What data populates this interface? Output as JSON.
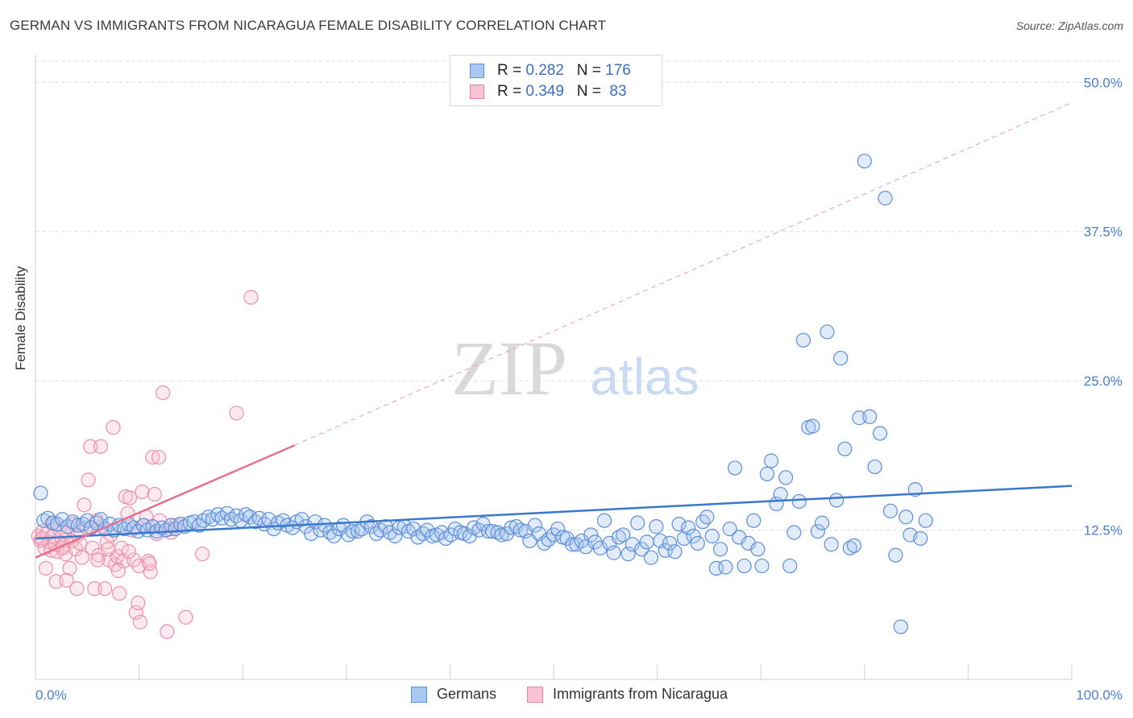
{
  "title": "GERMAN VS IMMIGRANTS FROM NICARAGUA FEMALE DISABILITY CORRELATION CHART",
  "source": "Source: ZipAtlas.com",
  "watermark": {
    "zip": "ZIP",
    "atlas": "atlas"
  },
  "legend": {
    "rows": [
      {
        "r_label": "R = ",
        "r_value": "0.282",
        "n_label": "N = ",
        "n_value": "176",
        "color": "#a9c8f0",
        "border": "#5b8fd9"
      },
      {
        "r_label": "R = ",
        "r_value": "0.349",
        "n_label": "N = ",
        "n_value": " 83",
        "color": "#f9c3d3",
        "border": "#e9849f"
      }
    ]
  },
  "bottom_legend": [
    {
      "label": "Germans",
      "color": "#a9c8f0",
      "border": "#5b8fd9"
    },
    {
      "label": "Immigrants from Nicaragua",
      "color": "#f9c3d3",
      "border": "#e9849f"
    }
  ],
  "colors": {
    "blue": "#3a78cc",
    "blue_fill": "rgba(168,199,240,0.35)",
    "blue_stroke": "#5b8fd9",
    "pink": "#e5708f",
    "pink_fill": "rgba(249,195,211,0.35)",
    "pink_stroke": "#ec8fa8",
    "axis_text": "#4a7fd0",
    "grid": "#dcdcdc"
  },
  "chart_data": {
    "type": "scatter",
    "xlabel": "",
    "ylabel": "Female Disability",
    "xlim": [
      0,
      100
    ],
    "ylim": [
      0,
      51.5
    ],
    "x_tick_labels": [
      "0.0%",
      "100.0%"
    ],
    "y_ticks": [
      12.5,
      25.0,
      37.5,
      50.0
    ],
    "y_tick_labels": [
      "12.5%",
      "25.0%",
      "37.5%",
      "50.0%"
    ],
    "grid": true,
    "legend_position": "top-center",
    "series": [
      {
        "name": "Germans",
        "R": 0.282,
        "N": 176,
        "trend": {
          "x": [
            0,
            100
          ],
          "y": [
            11.8,
            16.2
          ],
          "style": "solid"
        },
        "points": [
          [
            0.5,
            15.6
          ],
          [
            0.8,
            13.3
          ],
          [
            1.2,
            13.5
          ],
          [
            1.7,
            13.1
          ],
          [
            2.1,
            13.0
          ],
          [
            2.6,
            13.4
          ],
          [
            3.1,
            12.8
          ],
          [
            3.6,
            13.2
          ],
          [
            4.1,
            12.9
          ],
          [
            4.6,
            13.0
          ],
          [
            5.0,
            13.3
          ],
          [
            5.4,
            12.7
          ],
          [
            5.9,
            13.1
          ],
          [
            6.3,
            13.4
          ],
          [
            6.7,
            12.6
          ],
          [
            7.2,
            13.0
          ],
          [
            7.6,
            12.5
          ],
          [
            8.1,
            12.9
          ],
          [
            8.6,
            12.6
          ],
          [
            9.0,
            13.0
          ],
          [
            9.5,
            12.7
          ],
          [
            9.9,
            12.4
          ],
          [
            10.4,
            12.9
          ],
          [
            10.8,
            12.5
          ],
          [
            11.3,
            12.8
          ],
          [
            11.7,
            12.4
          ],
          [
            12.2,
            12.7
          ],
          [
            12.6,
            12.5
          ],
          [
            13.1,
            12.9
          ],
          [
            13.5,
            12.6
          ],
          [
            14.0,
            13.0
          ],
          [
            14.4,
            12.8
          ],
          [
            14.9,
            13.1
          ],
          [
            15.3,
            13.2
          ],
          [
            15.8,
            12.9
          ],
          [
            16.2,
            13.3
          ],
          [
            16.7,
            13.6
          ],
          [
            17.1,
            13.4
          ],
          [
            17.6,
            13.8
          ],
          [
            18.0,
            13.5
          ],
          [
            18.5,
            13.9
          ],
          [
            18.9,
            13.4
          ],
          [
            19.4,
            13.7
          ],
          [
            19.8,
            13.3
          ],
          [
            20.3,
            13.8
          ],
          [
            20.7,
            13.6
          ],
          [
            21.2,
            13.2
          ],
          [
            21.6,
            13.5
          ],
          [
            22.1,
            13.0
          ],
          [
            22.5,
            13.4
          ],
          [
            23.0,
            12.6
          ],
          [
            23.4,
            13.1
          ],
          [
            23.9,
            13.3
          ],
          [
            24.3,
            12.9
          ],
          [
            24.8,
            12.7
          ],
          [
            25.2,
            13.2
          ],
          [
            25.7,
            13.4
          ],
          [
            26.1,
            12.8
          ],
          [
            26.6,
            12.2
          ],
          [
            27.0,
            13.2
          ],
          [
            27.5,
            12.5
          ],
          [
            27.9,
            12.9
          ],
          [
            28.4,
            12.3
          ],
          [
            28.8,
            12.0
          ],
          [
            29.3,
            12.6
          ],
          [
            29.7,
            12.9
          ],
          [
            30.2,
            12.1
          ],
          [
            30.6,
            12.4
          ],
          [
            31.1,
            12.4
          ],
          [
            31.5,
            12.6
          ],
          [
            32.0,
            13.2
          ],
          [
            32.4,
            12.8
          ],
          [
            32.9,
            12.2
          ],
          [
            33.3,
            12.5
          ],
          [
            33.8,
            12.8
          ],
          [
            34.2,
            12.3
          ],
          [
            34.7,
            12.0
          ],
          [
            35.1,
            12.7
          ],
          [
            35.6,
            12.8
          ],
          [
            36.0,
            12.4
          ],
          [
            36.5,
            12.6
          ],
          [
            36.9,
            11.9
          ],
          [
            37.4,
            12.2
          ],
          [
            37.8,
            12.5
          ],
          [
            38.3,
            12.0
          ],
          [
            38.7,
            12.1
          ],
          [
            39.2,
            12.3
          ],
          [
            39.6,
            11.8
          ],
          [
            40.1,
            12.1
          ],
          [
            40.5,
            12.6
          ],
          [
            41.0,
            12.3
          ],
          [
            41.4,
            12.2
          ],
          [
            41.9,
            12.0
          ],
          [
            42.3,
            12.7
          ],
          [
            42.8,
            12.5
          ],
          [
            43.2,
            13.0
          ],
          [
            43.7,
            12.4
          ],
          [
            44.1,
            12.4
          ],
          [
            44.6,
            12.3
          ],
          [
            45.0,
            12.1
          ],
          [
            45.5,
            12.2
          ],
          [
            45.9,
            12.7
          ],
          [
            46.4,
            12.8
          ],
          [
            46.8,
            12.5
          ],
          [
            47.3,
            12.4
          ],
          [
            47.7,
            11.6
          ],
          [
            48.2,
            12.9
          ],
          [
            48.6,
            12.2
          ],
          [
            49.1,
            11.4
          ],
          [
            49.5,
            11.7
          ],
          [
            50.0,
            12.1
          ],
          [
            50.4,
            12.6
          ],
          [
            50.9,
            11.9
          ],
          [
            51.3,
            11.8
          ],
          [
            51.8,
            11.3
          ],
          [
            52.2,
            11.3
          ],
          [
            52.7,
            11.6
          ],
          [
            53.1,
            11.1
          ],
          [
            53.6,
            12.1
          ],
          [
            54.0,
            11.5
          ],
          [
            54.5,
            11.0
          ],
          [
            54.9,
            13.3
          ],
          [
            55.4,
            11.4
          ],
          [
            55.8,
            10.6
          ],
          [
            56.3,
            11.9
          ],
          [
            56.7,
            12.1
          ],
          [
            57.2,
            10.5
          ],
          [
            57.6,
            11.3
          ],
          [
            58.1,
            13.1
          ],
          [
            58.5,
            10.9
          ],
          [
            59.0,
            11.5
          ],
          [
            59.4,
            10.2
          ],
          [
            59.9,
            12.8
          ],
          [
            60.3,
            11.6
          ],
          [
            60.8,
            10.8
          ],
          [
            61.2,
            11.4
          ],
          [
            61.7,
            10.7
          ],
          [
            62.1,
            13.0
          ],
          [
            62.6,
            11.8
          ],
          [
            63.0,
            12.7
          ],
          [
            63.5,
            12.0
          ],
          [
            63.9,
            11.4
          ],
          [
            64.4,
            13.2
          ],
          [
            64.8,
            13.6
          ],
          [
            65.3,
            12.0
          ],
          [
            65.7,
            9.3
          ],
          [
            66.1,
            10.9
          ],
          [
            66.6,
            9.4
          ],
          [
            67.0,
            12.6
          ],
          [
            67.5,
            17.7
          ],
          [
            67.9,
            11.9
          ],
          [
            68.4,
            9.5
          ],
          [
            68.8,
            11.4
          ],
          [
            69.3,
            13.3
          ],
          [
            69.7,
            10.9
          ],
          [
            70.1,
            9.5
          ],
          [
            70.6,
            17.2
          ],
          [
            71.0,
            18.3
          ],
          [
            71.5,
            14.7
          ],
          [
            71.9,
            15.5
          ],
          [
            72.4,
            16.9
          ],
          [
            72.8,
            9.5
          ],
          [
            73.2,
            12.3
          ],
          [
            73.7,
            14.9
          ],
          [
            74.1,
            28.4
          ],
          [
            74.6,
            21.1
          ],
          [
            75.0,
            21.2
          ],
          [
            75.5,
            12.4
          ],
          [
            75.9,
            13.1
          ],
          [
            76.4,
            29.1
          ],
          [
            76.8,
            11.3
          ],
          [
            77.3,
            15.0
          ],
          [
            77.7,
            26.9
          ],
          [
            78.1,
            19.3
          ],
          [
            78.6,
            11.0
          ],
          [
            79.0,
            11.2
          ],
          [
            79.5,
            21.9
          ],
          [
            80.0,
            43.4
          ],
          [
            80.5,
            22.0
          ],
          [
            81.0,
            17.8
          ],
          [
            81.5,
            20.6
          ],
          [
            82.0,
            40.3
          ],
          [
            82.5,
            14.1
          ],
          [
            83.0,
            10.4
          ],
          [
            83.5,
            4.4
          ],
          [
            84.0,
            13.6
          ],
          [
            84.4,
            12.1
          ],
          [
            84.9,
            15.9
          ],
          [
            85.4,
            11.8
          ],
          [
            85.9,
            13.3
          ]
        ]
      },
      {
        "name": "Immigrants from Nicaragua",
        "R": 0.349,
        "N": 83,
        "trend": {
          "x": [
            0,
            25
          ],
          "y": [
            10.2,
            19.6
          ],
          "style": "solid",
          "extended": {
            "x": [
              25,
              100
            ],
            "y": [
              19.6,
              48.3
            ],
            "style": "dashed"
          }
        },
        "points": [
          [
            0.3,
            12.0
          ],
          [
            0.5,
            11.6
          ],
          [
            0.7,
            12.4
          ],
          [
            0.9,
            11.0
          ],
          [
            1.1,
            12.2
          ],
          [
            1.3,
            11.5
          ],
          [
            1.5,
            10.8
          ],
          [
            1.7,
            12.0
          ],
          [
            1.9,
            11.3
          ],
          [
            2.1,
            10.7
          ],
          [
            2.3,
            12.6
          ],
          [
            2.5,
            11.9
          ],
          [
            2.7,
            11.2
          ],
          [
            2.9,
            10.5
          ],
          [
            3.1,
            12.3
          ],
          [
            3.3,
            9.3
          ],
          [
            3.5,
            11.6
          ],
          [
            3.7,
            13.0
          ],
          [
            3.9,
            10.9
          ],
          [
            4.1,
            12.1
          ],
          [
            4.3,
            11.4
          ],
          [
            4.5,
            10.2
          ],
          [
            4.7,
            14.6
          ],
          [
            4.9,
            12.7
          ],
          [
            5.1,
            16.7
          ],
          [
            5.3,
            19.5
          ],
          [
            5.5,
            11.0
          ],
          [
            5.7,
            7.6
          ],
          [
            5.9,
            13.3
          ],
          [
            6.1,
            10.4
          ],
          [
            6.3,
            19.5
          ],
          [
            6.5,
            12.8
          ],
          [
            6.7,
            7.6
          ],
          [
            6.9,
            11.5
          ],
          [
            7.1,
            10.0
          ],
          [
            7.3,
            12.1
          ],
          [
            7.5,
            21.1
          ],
          [
            7.7,
            9.6
          ],
          [
            7.9,
            10.3
          ],
          [
            8.1,
            7.2
          ],
          [
            8.3,
            11.0
          ],
          [
            8.5,
            9.9
          ],
          [
            8.7,
            15.3
          ],
          [
            8.9,
            13.9
          ],
          [
            9.1,
            15.2
          ],
          [
            9.3,
            12.5
          ],
          [
            9.5,
            10.0
          ],
          [
            9.7,
            5.6
          ],
          [
            9.9,
            6.4
          ],
          [
            10.1,
            4.8
          ],
          [
            10.3,
            15.7
          ],
          [
            10.5,
            12.9
          ],
          [
            10.7,
            13.6
          ],
          [
            10.9,
            9.9
          ],
          [
            11.1,
            9.0
          ],
          [
            11.3,
            18.6
          ],
          [
            11.5,
            15.5
          ],
          [
            11.7,
            12.2
          ],
          [
            11.9,
            18.6
          ],
          [
            12.3,
            24.0
          ],
          [
            12.7,
            4.0
          ],
          [
            13.1,
            12.3
          ],
          [
            13.5,
            12.9
          ],
          [
            14.0,
            13.0
          ],
          [
            14.5,
            5.2
          ],
          [
            1.0,
            9.3
          ],
          [
            2.0,
            8.2
          ],
          [
            3.0,
            8.3
          ],
          [
            4.0,
            7.6
          ],
          [
            6.0,
            10.0
          ],
          [
            7.0,
            10.9
          ],
          [
            8.0,
            9.1
          ],
          [
            9.0,
            10.7
          ],
          [
            10.0,
            9.5
          ],
          [
            11.0,
            9.7
          ],
          [
            12.0,
            13.3
          ],
          [
            13.0,
            12.6
          ],
          [
            0.6,
            11.8
          ],
          [
            1.6,
            13.1
          ],
          [
            2.6,
            11.0
          ],
          [
            20.8,
            32.0
          ],
          [
            19.4,
            22.3
          ],
          [
            16.1,
            10.5
          ]
        ]
      }
    ]
  }
}
